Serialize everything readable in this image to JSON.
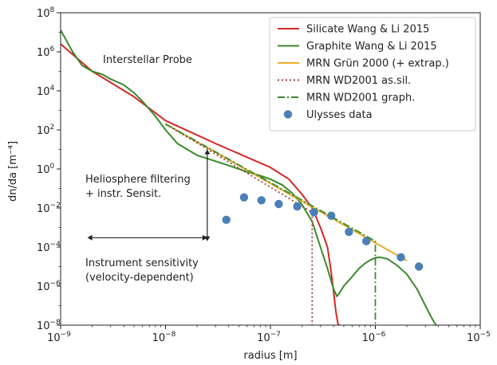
{
  "chart_data": {
    "type": "line",
    "xlabel": "radius [m]",
    "ylabel": "dn/da [m⁻⁴]",
    "xscale": "log",
    "yscale": "log",
    "xlim": [
      1e-09,
      1e-05
    ],
    "ylim": [
      1e-08,
      100000000.0
    ],
    "grid": false,
    "legend_position": "top-right",
    "x_ticks": [
      {
        "base": "10",
        "exp": "−9",
        "value": 1e-09
      },
      {
        "base": "10",
        "exp": "−8",
        "value": 1e-08
      },
      {
        "base": "10",
        "exp": "−7",
        "value": 1e-07
      },
      {
        "base": "10",
        "exp": "−6",
        "value": 1e-06
      },
      {
        "base": "10",
        "exp": "−5",
        "value": 1e-05
      }
    ],
    "y_ticks": [
      {
        "base": "10",
        "exp": "8",
        "value": 100000000.0
      },
      {
        "base": "10",
        "exp": "6",
        "value": 1000000.0
      },
      {
        "base": "10",
        "exp": "4",
        "value": 10000.0
      },
      {
        "base": "10",
        "exp": "2",
        "value": 100.0
      },
      {
        "base": "10",
        "exp": "0",
        "value": 1.0
      },
      {
        "base": "10",
        "exp": "−2",
        "value": 0.01
      },
      {
        "base": "10",
        "exp": "−4",
        "value": 0.0001
      },
      {
        "base": "10",
        "exp": "−6",
        "value": 1e-06
      },
      {
        "base": "10",
        "exp": "−8",
        "value": 1e-08
      }
    ],
    "series": [
      {
        "name": "Silicate Wang & Li 2015",
        "color": "#d62728",
        "style": "solid",
        "x": [
          1e-09,
          2e-09,
          5e-09,
          1e-08,
          3e-08,
          1e-07,
          1.5e-07,
          2e-07,
          2.5e-07,
          3e-07,
          3.5e-07,
          3.8e-07,
          4e-07,
          4.2e-07,
          4.4e-07,
          4.5e-07
        ],
        "y": [
          2500000.0,
          100000.0,
          5000.0,
          300.0,
          20.0,
          1.2,
          0.3,
          0.05,
          0.01,
          0.001,
          0.0001,
          5e-06,
          5e-07,
          5e-08,
          1.2e-08,
          1e-08
        ]
      },
      {
        "name": "Graphite Wang & Li 2015",
        "color": "#3a8a2a",
        "style": "solid",
        "x": [
          1e-09,
          1.3e-09,
          1.6e-09,
          2e-09,
          2.5e-09,
          3e-09,
          4e-09,
          5e-09,
          6e-09,
          8e-09,
          1e-08,
          1.3e-08,
          2e-08,
          3e-08,
          4e-08,
          5e-08,
          6e-08,
          8e-08,
          1e-07,
          1.3e-07,
          1.6e-07,
          2e-07,
          2.5e-07,
          3e-07,
          3.5e-07,
          4e-07,
          4.3e-07,
          4.5e-07,
          5e-07,
          6e-07,
          7e-07,
          8e-07,
          9e-07,
          1e-06,
          1.1e-06,
          1.3e-06,
          1.6e-06,
          2e-06,
          2.5e-06,
          3e-06,
          3.5e-06,
          3.8e-06
        ],
        "y": [
          13000000.0,
          1000000.0,
          200000.0,
          100000.0,
          70000.0,
          40000.0,
          20000.0,
          8000.0,
          3000.0,
          500.0,
          100.0,
          20.0,
          5.0,
          2.5,
          1.5,
          1.0,
          0.7,
          0.45,
          0.3,
          0.15,
          0.06,
          0.015,
          0.002,
          0.0001,
          8e-06,
          7e-07,
          3e-07,
          4e-07,
          1e-06,
          3e-06,
          8e-06,
          1.5e-05,
          2.2e-05,
          2.8e-05,
          3e-05,
          2.5e-05,
          1.2e-05,
          4e-06,
          7e-07,
          1e-07,
          2e-08,
          1e-08
        ]
      },
      {
        "name": "MRN Grün 2000 (+ extrap.)",
        "color": "#e6ac2a",
        "style": "solid",
        "x": [
          1e-08,
          2e-06
        ],
        "y": [
          200.0,
          2e-05
        ]
      },
      {
        "name": "MRN WD2001 as.sil.",
        "color": "#a04040",
        "style": "dotted",
        "x": [
          1e-08,
          2.5e-07,
          2.5e-07
        ],
        "y": [
          200.0,
          0.006,
          1e-08
        ]
      },
      {
        "name": "MRN WD2001 graph.",
        "color": "#3a8a2a",
        "style": "dashdot",
        "x": [
          1e-08,
          1e-06,
          1e-06
        ],
        "y": [
          200.0,
          0.0002,
          1e-08
        ]
      },
      {
        "name": "Ulysses data",
        "color": "#4a7fb8",
        "style": "marker",
        "x": [
          3.8e-08,
          5.6e-08,
          8.2e-08,
          1.2e-07,
          1.8e-07,
          2.6e-07,
          3.8e-07,
          5.6e-07,
          8.2e-07,
          1.75e-06,
          2.6e-06
        ],
        "y": [
          0.0025,
          0.035,
          0.025,
          0.016,
          0.012,
          0.006,
          0.004,
          0.0006,
          0.0002,
          3e-05,
          1e-05
        ]
      }
    ],
    "annotations": [
      {
        "id": "interstellar-probe",
        "lines": [
          "Interstellar Probe"
        ]
      },
      {
        "id": "heliosphere-filtering",
        "lines": [
          "Heliosphere filtering",
          "+ instr. Sensit."
        ]
      },
      {
        "id": "instrument-sensitivity",
        "lines": [
          "Instrument sensitivity",
          "(velocity-dependent)"
        ]
      }
    ],
    "arrows": [
      {
        "id": "vertical-arrow",
        "x": 2.5e-08,
        "y_from": 0.0002,
        "y_to": 10.0
      },
      {
        "id": "horizontal-arrow",
        "y": 0.0003,
        "x_from": 1.8e-09,
        "x_to": 2.5e-08
      }
    ]
  }
}
